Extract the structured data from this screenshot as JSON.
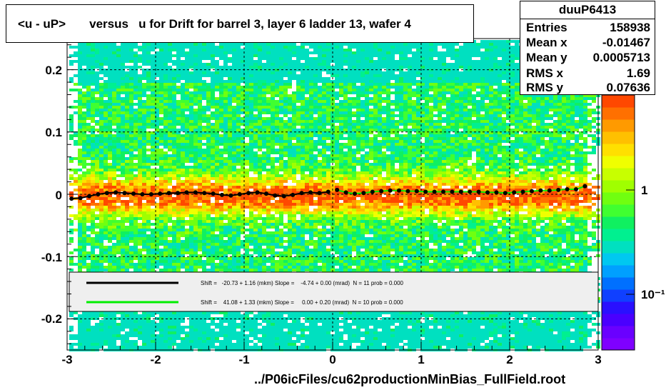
{
  "title": "<u - uP>       versus   u for Drift for barrel 3, layer 6 ladder 13, wafer 4",
  "stats": {
    "name": "duuP6413",
    "rows": [
      {
        "label": "Entries",
        "value": "158938"
      },
      {
        "label": "Mean x",
        "value": "-0.01467"
      },
      {
        "label": "Mean y",
        "value": "0.0005713"
      },
      {
        "label": "RMS x",
        "value": "1.69"
      },
      {
        "label": "RMS y",
        "value": "0.07636"
      }
    ]
  },
  "footer": "../P06icFiles/cu62productionMinBias_FullField.root",
  "colors": {
    "black_fit": "#000000",
    "green_fit": "#00ee00"
  },
  "chart_data": {
    "type": "heatmap",
    "title": "<u - uP>       versus   u for Drift for barrel 3, layer 6 ladder 13, wafer 4",
    "xlim": [
      -3,
      3
    ],
    "ylim": [
      -0.25,
      0.25
    ],
    "x_ticks": [
      "-3",
      "-2",
      "-1",
      "0",
      "1",
      "2",
      "3"
    ],
    "y_ticks": [
      {
        "value": 0.2,
        "label": "0.2"
      },
      {
        "value": 0.1,
        "label": "0.1"
      },
      {
        "value": 0,
        "label": "0"
      },
      {
        "value": -0.1,
        "label": "-0.1"
      },
      {
        "value": -0.2,
        "label": "-0.2"
      }
    ],
    "z_ticks": [
      {
        "value": 1,
        "label": "1"
      },
      {
        "value": 0.1,
        "label": "10⁻¹"
      }
    ],
    "z_scale": "log",
    "grid": true,
    "profile_black": {
      "x": [
        -2.95,
        -2.85,
        -2.75,
        -2.65,
        -2.55,
        -2.45,
        -2.35,
        -2.25,
        -2.15,
        -2.05,
        -1.95,
        -1.85,
        -1.75,
        -1.65,
        -1.55,
        -1.45,
        -1.35,
        -1.25,
        -1.15,
        -1.05,
        -0.95,
        -0.85,
        -0.75,
        -0.65,
        -0.55,
        -0.45,
        -0.35,
        -0.25,
        -0.15,
        -0.05,
        0.05,
        0.15,
        0.25,
        0.35,
        0.45,
        0.55,
        0.65,
        0.75,
        0.85,
        0.95,
        1.05,
        1.15,
        1.25,
        1.35,
        1.45,
        1.55,
        1.65,
        1.75,
        1.85,
        1.95,
        2.05,
        2.15,
        2.25,
        2.35,
        2.45,
        2.55,
        2.65,
        2.75,
        2.85
      ],
      "y": [
        -0.007,
        -0.006,
        -0.003,
        0.0,
        0.002,
        0.003,
        0.002,
        0.001,
        0.0,
        0.0,
        0.001,
        0.002,
        0.002,
        0.003,
        0.003,
        0.002,
        0.001,
        -0.001,
        -0.002,
        0.0,
        0.002,
        0.003,
        0.001,
        -0.002,
        -0.003,
        -0.001,
        0.002,
        0.003,
        0.002,
        0.004,
        0.007,
        0.003,
        0.001,
        0.002,
        0.004,
        0.005,
        0.006,
        0.006,
        0.005,
        0.005,
        0.004,
        0.004,
        0.004,
        0.004,
        0.004,
        0.004,
        0.004,
        0.003,
        0.003,
        0.002,
        0.003,
        0.004,
        0.005,
        0.006,
        0.006,
        0.007,
        0.008,
        0.008,
        0.013
      ]
    },
    "fits": [
      {
        "name": "Shift =   -20.73 + 1.16 (mkm) Slope =    -4.74 + 0.00 (mrad)  N = 11 prob = 0.000",
        "color": "#000000"
      },
      {
        "name": "Shift =    41.08 + 1.33 (mkm) Slope =     0.00 + 0.20 (mrad)  N = 10 prob = 0.000",
        "color": "#00ee00"
      }
    ]
  }
}
